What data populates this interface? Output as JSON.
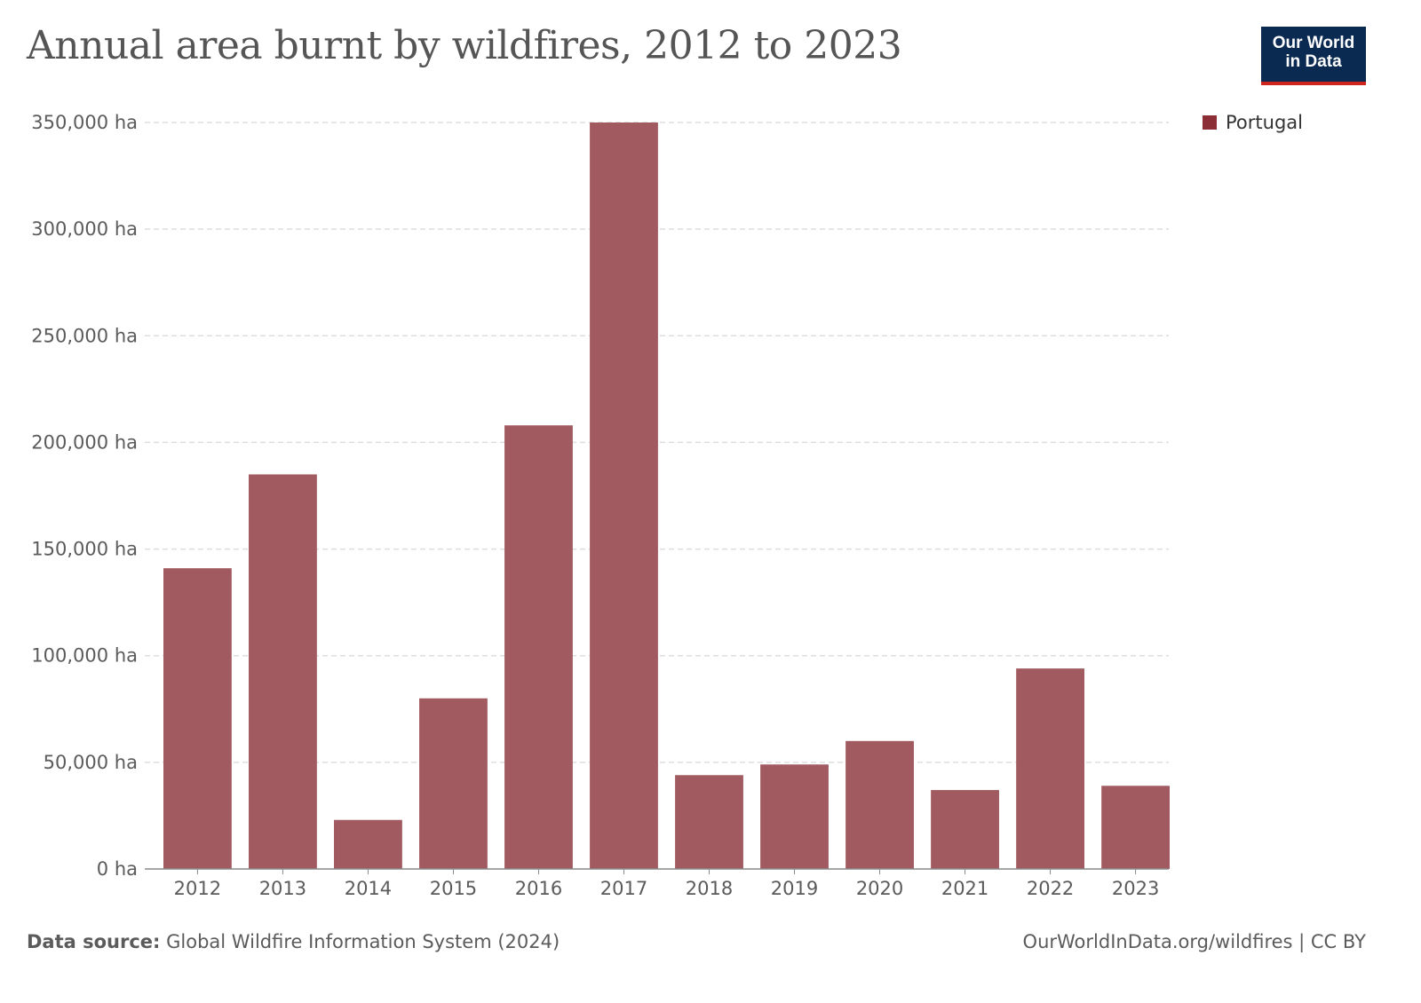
{
  "title": "Annual area burnt by wildfires, 2012 to 2023",
  "logo": {
    "line1": "Our World",
    "line2": "in Data"
  },
  "footer": {
    "source_label": "Data source:",
    "source_text": "Global Wildfire Information System (2024)",
    "right_text": "OurWorldInData.org/wildfires | CC BY"
  },
  "colors": {
    "bar": "#a05a60",
    "legend": "#8b2e35",
    "logo_bg": "#0b2a52",
    "logo_accent": "#ce261e"
  },
  "chart_data": {
    "type": "bar",
    "categories": [
      "2012",
      "2013",
      "2014",
      "2015",
      "2016",
      "2017",
      "2018",
      "2019",
      "2020",
      "2021",
      "2022",
      "2023"
    ],
    "series": [
      {
        "name": "Portugal",
        "values": [
          141000,
          185000,
          23000,
          80000,
          208000,
          350000,
          44000,
          49000,
          60000,
          37000,
          94000,
          39000
        ]
      }
    ],
    "y_ticks": [
      0,
      50000,
      100000,
      150000,
      200000,
      250000,
      300000,
      350000
    ],
    "y_tick_labels": [
      "0 ha",
      "50,000 ha",
      "100,000 ha",
      "150,000 ha",
      "200,000 ha",
      "250,000 ha",
      "300,000 ha",
      "350,000 ha"
    ],
    "ylim": [
      0,
      350000
    ],
    "grid": true,
    "legend_position": "top-right"
  }
}
